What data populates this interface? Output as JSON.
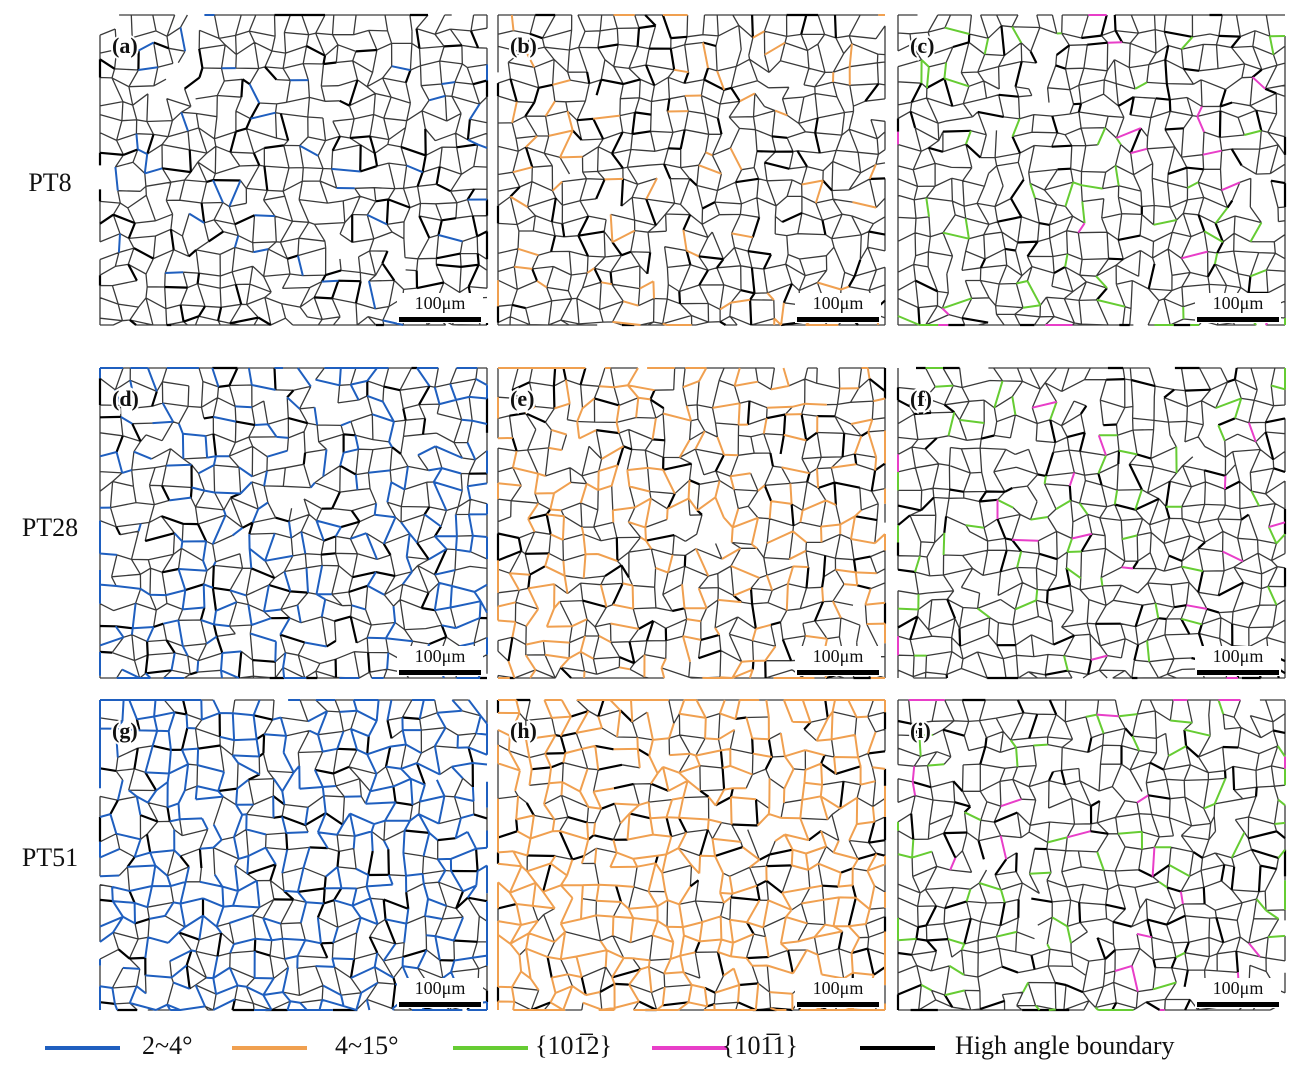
{
  "rows": [
    {
      "label": "PT8"
    },
    {
      "label": "PT28"
    },
    {
      "label": "PT51"
    }
  ],
  "panels": [
    {
      "label": "(a)",
      "scale_bar": "100μm"
    },
    {
      "label": "(b)",
      "scale_bar": "100μm"
    },
    {
      "label": "(c)",
      "scale_bar": "100μm"
    },
    {
      "label": "(d)",
      "scale_bar": "100μm"
    },
    {
      "label": "(e)",
      "scale_bar": "100μm"
    },
    {
      "label": "(f)",
      "scale_bar": "100μm"
    },
    {
      "label": "(g)",
      "scale_bar": "100μm"
    },
    {
      "label": "(h)",
      "scale_bar": "100μm"
    },
    {
      "label": "(i)",
      "scale_bar": "100μm"
    }
  ],
  "legend": [
    {
      "label": "2~4°",
      "color": "#1f5fbf"
    },
    {
      "label": "4~15°",
      "color": "#f0a050"
    },
    {
      "label": "{101̅2}",
      "color": "#66cc33"
    },
    {
      "label": "{101̅1}",
      "color": "#e83ec8"
    },
    {
      "label": "High angle boundary",
      "color": "#000000"
    }
  ]
}
